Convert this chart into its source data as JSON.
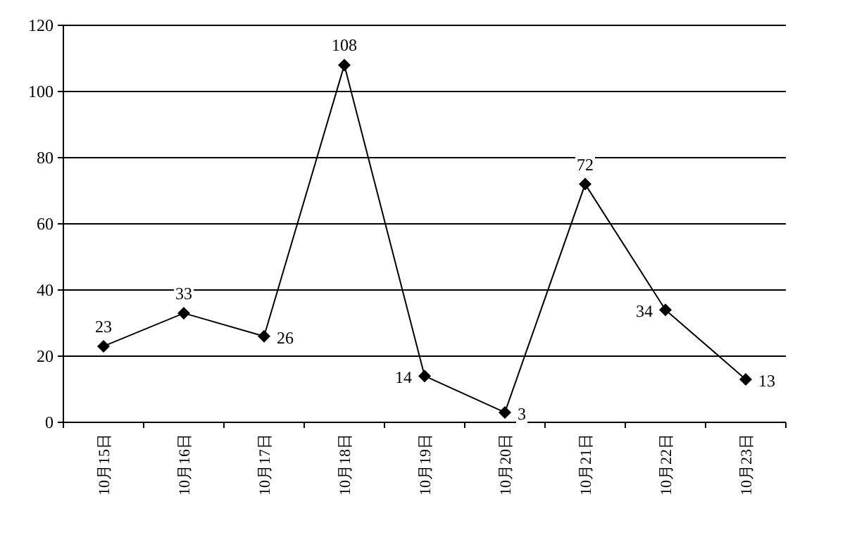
{
  "chart_data": {
    "type": "line",
    "categories": [
      "10月15日",
      "10月16日",
      "10月17日",
      "10月18日",
      "10月19日",
      "10月20日",
      "10月21日",
      "10月22日",
      "10月23日"
    ],
    "series": [
      {
        "color": "#000000",
        "values": [
          23,
          33,
          26,
          108,
          14,
          3,
          72,
          34,
          13
        ]
      }
    ],
    "ylim": [
      0,
      120
    ],
    "yticks": [
      0,
      20,
      40,
      60,
      80,
      100,
      120
    ],
    "grid": "y",
    "marker": "diamond",
    "line_style": "solid",
    "data_labels": true
  }
}
